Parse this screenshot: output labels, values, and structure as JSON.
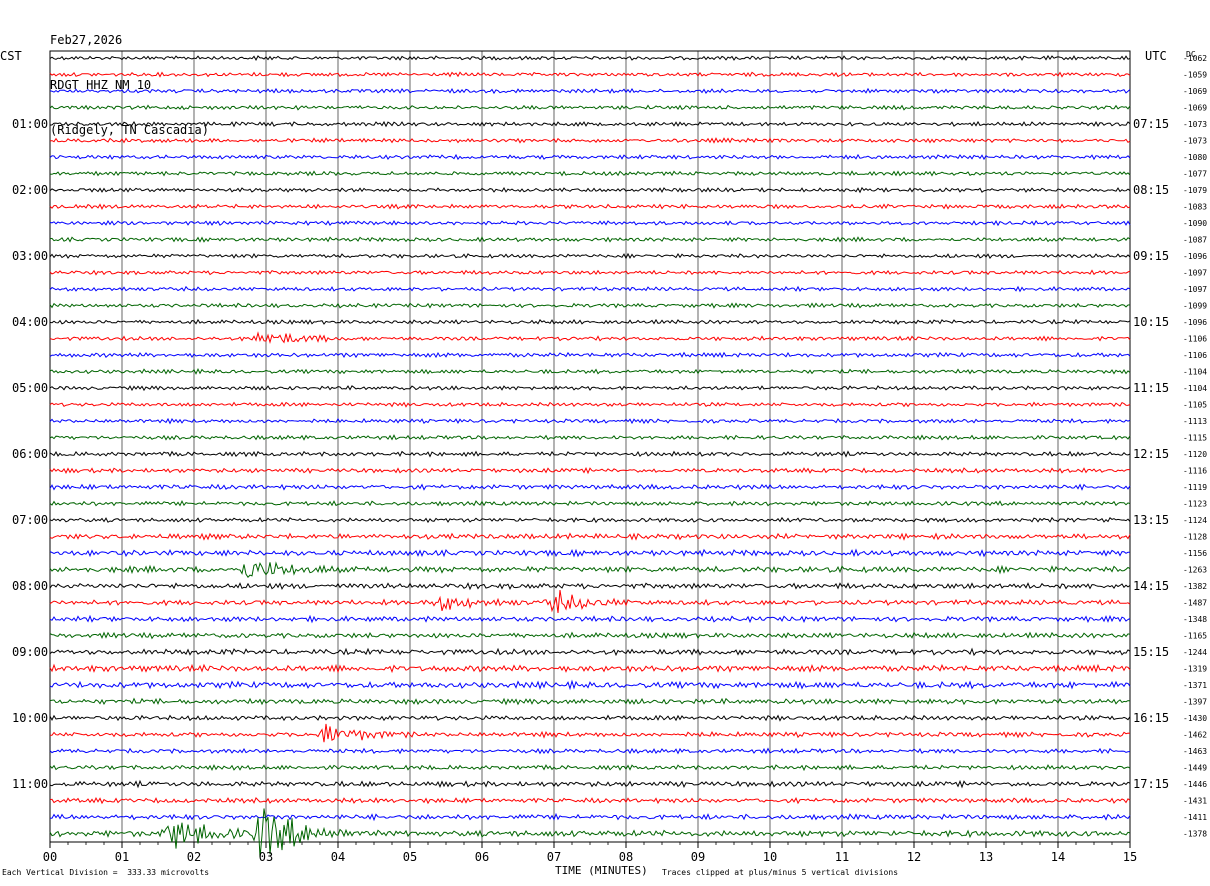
{
  "header": {
    "date": "Feb27,2026",
    "station": "RDGT HHZ NM 10",
    "location": "(Ridgely, TN Cascadia)"
  },
  "axes": {
    "left_label": "CST",
    "right_label": "UTC",
    "dc_label": "DC"
  },
  "footer": {
    "scale_note": "Each Vertical Division =  333.33 microvolts",
    "xlabel": "TIME (MINUTES)",
    "clip_note": "Traces clipped at plus/minus 5 vertical divisions"
  },
  "colors": {
    "trace_cycle": [
      "#000000",
      "#ff0000",
      "#0000ff",
      "#006400"
    ],
    "grid": "#000000"
  },
  "chart_data": {
    "type": "line",
    "title": "RDGT HHZ NM 10",
    "xlabel": "TIME (MINUTES)",
    "ylabel": "",
    "xlim": [
      0,
      15
    ],
    "x_ticks": [
      "00",
      "01",
      "02",
      "03",
      "04",
      "05",
      "06",
      "07",
      "08",
      "09",
      "10",
      "11",
      "12",
      "13",
      "14",
      "15"
    ],
    "trace_minutes": 15,
    "rows": 48,
    "left_hour_labels": [
      "01:00",
      "02:00",
      "03:00",
      "04:00",
      "05:00",
      "06:00",
      "07:00",
      "08:00",
      "09:00",
      "10:00",
      "11:00"
    ],
    "right_hour_labels": [
      "07:15",
      "08:15",
      "09:15",
      "10:15",
      "11:15",
      "12:15",
      "13:15",
      "14:15",
      "15:15",
      "16:15",
      "17:15"
    ],
    "dc_offsets": [
      -1062,
      -1059,
      -1069,
      -1069,
      -1073,
      -1073,
      -1080,
      -1077,
      -1079,
      -1083,
      -1090,
      -1087,
      -1096,
      -1097,
      -1097,
      -1099,
      -1096,
      -1106,
      -1106,
      -1104,
      -1104,
      -1105,
      -1113,
      -1115,
      -1120,
      -1116,
      -1119,
      -1123,
      -1124,
      -1128,
      -1156,
      -1263,
      -1382,
      -1487,
      -1348,
      -1165,
      -1244,
      -1319,
      -1371,
      -1397,
      -1430,
      -1462,
      -1463,
      -1449,
      -1446,
      -1431,
      -1411,
      -1378
    ],
    "noise_levels": [
      1,
      1,
      1,
      1,
      1,
      1,
      1,
      1,
      1,
      1,
      1,
      1,
      1,
      1,
      1,
      1,
      1,
      1,
      1.1,
      1,
      1,
      1,
      1,
      1,
      1.1,
      1.1,
      1.2,
      1.1,
      1.1,
      1.3,
      1.4,
      1.5,
      1.4,
      1.3,
      1.3,
      1.3,
      1.4,
      1.6,
      1.6,
      1.3,
      1.2,
      1.2,
      1.1,
      1.1,
      1.3,
      1.2,
      1.3,
      1.6
    ],
    "events": [
      {
        "row": 17,
        "minute": 2.95,
        "amplitude": 8
      },
      {
        "row": 31,
        "minute": 2.75,
        "amplitude": 12
      },
      {
        "row": 33,
        "minute": 5.4,
        "amplitude": 7
      },
      {
        "row": 33,
        "minute": 7.0,
        "amplitude": 10
      },
      {
        "row": 41,
        "minute": 3.85,
        "amplitude": 10
      },
      {
        "row": 47,
        "minute": 1.7,
        "amplitude": 16
      },
      {
        "row": 47,
        "minute": 2.95,
        "amplitude": 30
      }
    ],
    "scale_microvolts_per_division": 333.33,
    "clip_divisions": 5
  }
}
